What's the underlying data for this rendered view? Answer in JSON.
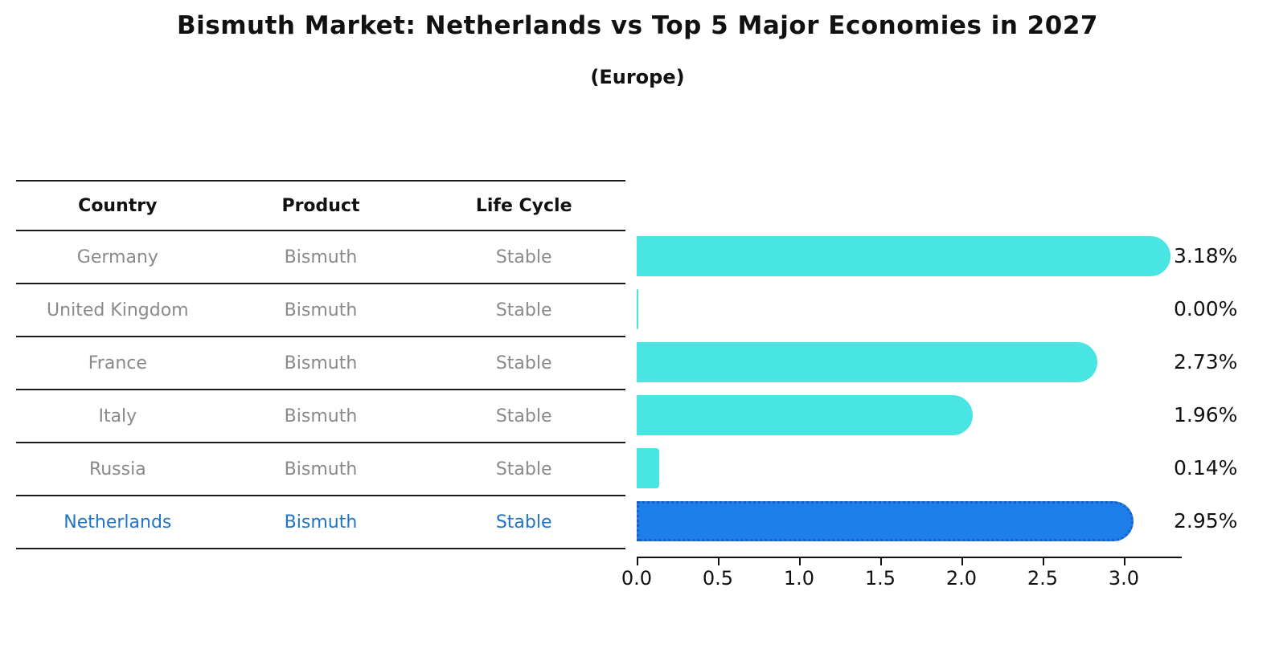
{
  "header": {
    "title": "Bismuth Market: Netherlands vs Top 5 Major Economies in 2027",
    "subtitle": "(Europe)"
  },
  "table": {
    "columns": [
      "Country",
      "Product",
      "Life Cycle"
    ],
    "rows": [
      {
        "country": "Germany",
        "product": "Bismuth",
        "life_cycle": "Stable",
        "highlighted": false
      },
      {
        "country": "United Kingdom",
        "product": "Bismuth",
        "life_cycle": "Stable",
        "highlighted": false
      },
      {
        "country": "France",
        "product": "Bismuth",
        "life_cycle": "Stable",
        "highlighted": false
      },
      {
        "country": "Italy",
        "product": "Bismuth",
        "life_cycle": "Stable",
        "highlighted": false
      },
      {
        "country": "Russia",
        "product": "Bismuth",
        "life_cycle": "Stable",
        "highlighted": false
      },
      {
        "country": "Netherlands",
        "product": "Bismuth",
        "life_cycle": "Stable",
        "highlighted": true
      }
    ]
  },
  "chart_data": {
    "type": "bar",
    "orientation": "horizontal",
    "title": "Bismuth Market: Netherlands vs Top 5 Major Economies in 2027",
    "subtitle": "(Europe)",
    "categories": [
      "Germany",
      "United Kingdom",
      "France",
      "Italy",
      "Russia",
      "Netherlands"
    ],
    "values": [
      3.18,
      0.0,
      2.73,
      1.96,
      0.14,
      2.95
    ],
    "value_labels": [
      "3.18%",
      "0.00%",
      "2.73%",
      "1.96%",
      "0.14%",
      "2.95%"
    ],
    "xticks": [
      0.0,
      0.5,
      1.0,
      1.5,
      2.0,
      2.5,
      3.0
    ],
    "xtick_labels": [
      "0.0",
      "0.5",
      "1.0",
      "1.5",
      "2.0",
      "2.5",
      "3.0"
    ],
    "xlim": [
      0,
      3.36
    ],
    "grid": false,
    "legend": "none",
    "bar_color": "#48E5E3",
    "highlight_index": 5,
    "highlight_color": "#1E7FEB",
    "highlight_edge_color": "#1B5FC4",
    "highlight_edge_style": "dotted",
    "value_label_color": "#111111",
    "axis_color": "#111111",
    "row_text_color": "#8a8a8a",
    "highlight_text_color": "#1F74C8"
  }
}
